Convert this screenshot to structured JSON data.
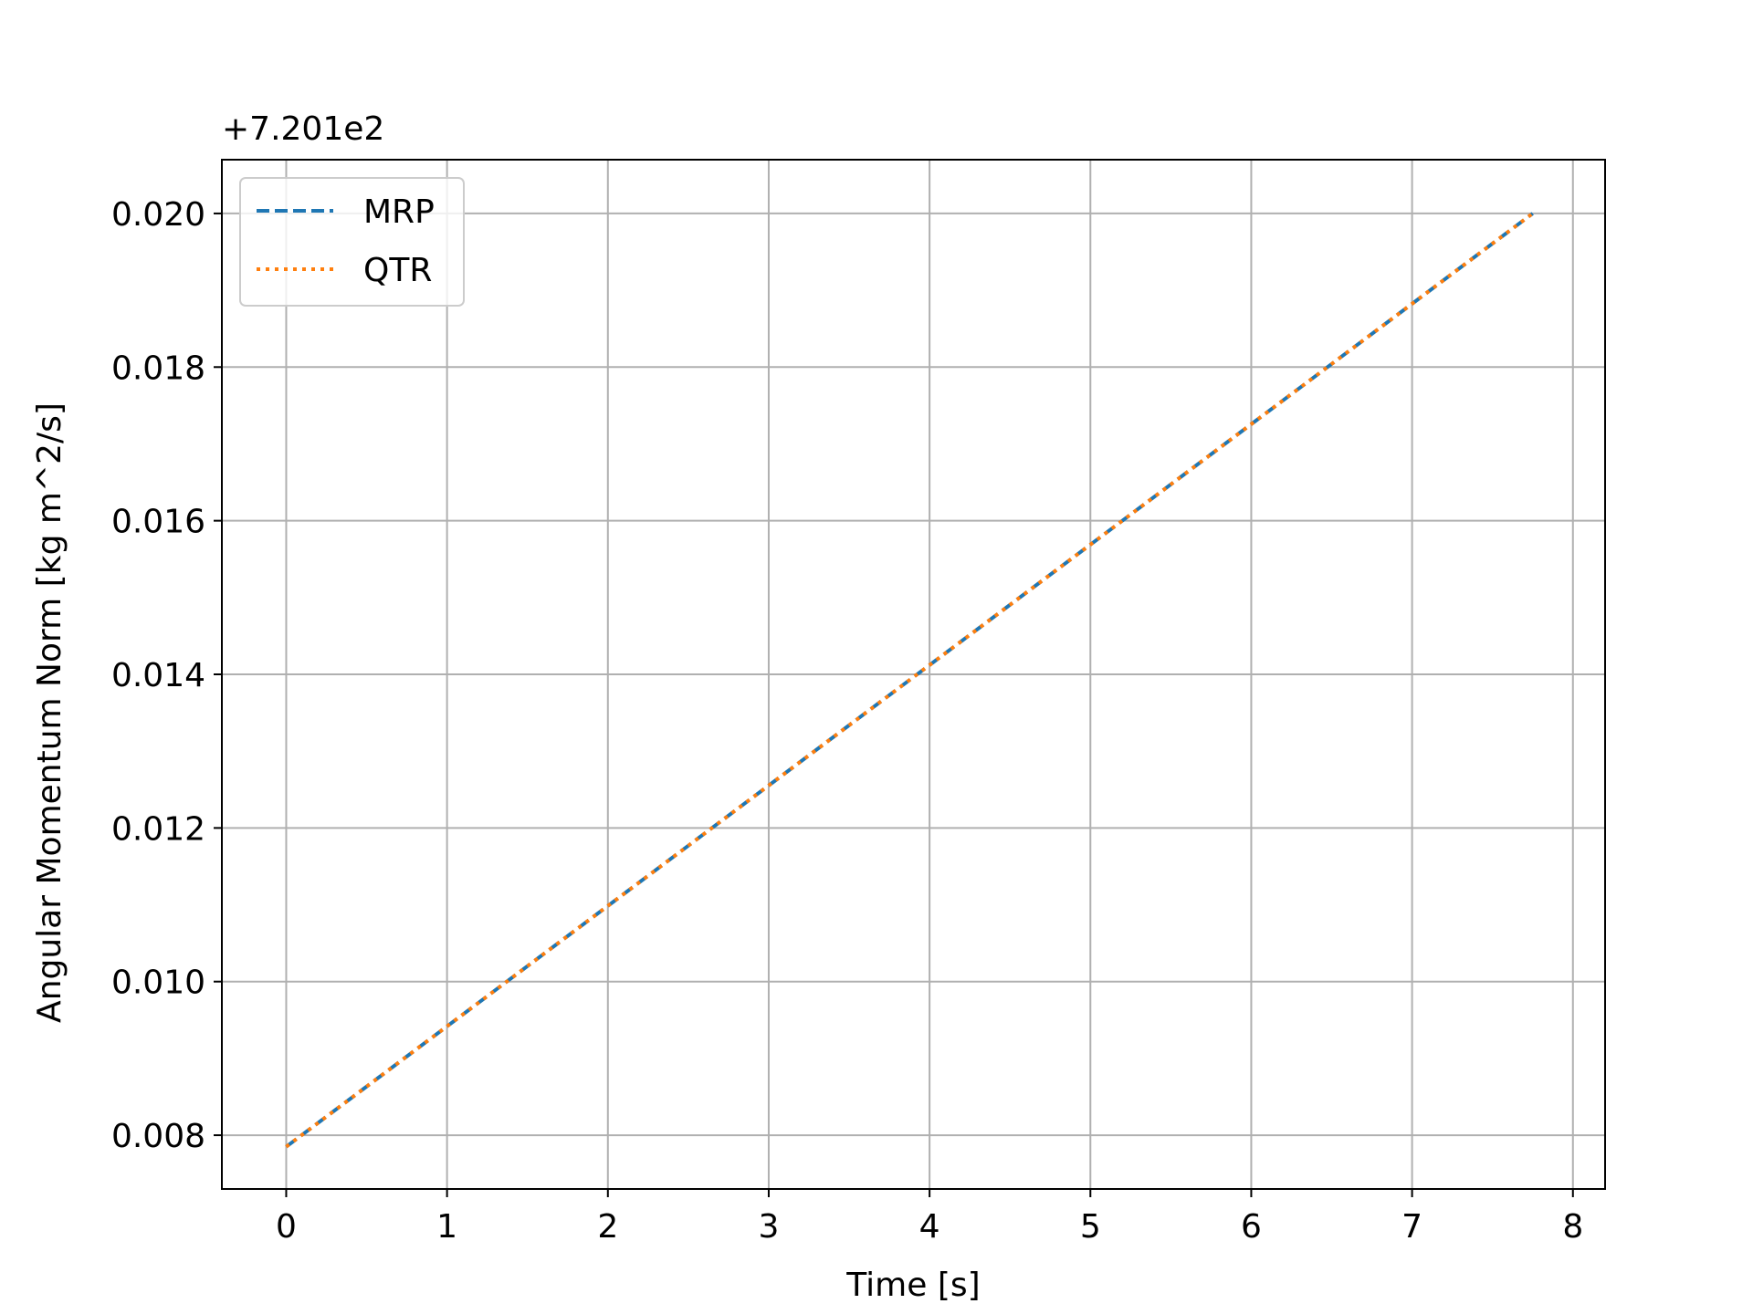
{
  "chart_data": {
    "type": "line",
    "title": "",
    "xlabel": "Time [s]",
    "ylabel": "Angular Momentum Norm [kg m^2/s]",
    "y_offset_label": "+7.201e2",
    "x_ticks": [
      "0",
      "1",
      "2",
      "3",
      "4",
      "5",
      "6",
      "7",
      "8"
    ],
    "y_ticks": [
      "0.008",
      "0.010",
      "0.012",
      "0.014",
      "0.016",
      "0.018",
      "0.020"
    ],
    "xlim": [
      -0.4,
      8.2
    ],
    "ylim": [
      0.0073,
      0.0207
    ],
    "grid": true,
    "legend_position": "top-left",
    "series": [
      {
        "name": "MRP",
        "style": "dashed",
        "color": "#1f77b4",
        "x": [
          0,
          7.75
        ],
        "y": [
          0.00785,
          0.02
        ]
      },
      {
        "name": "QTR",
        "style": "dotted",
        "color": "#ff7f0e",
        "x": [
          0,
          7.75
        ],
        "y": [
          0.00785,
          0.02
        ]
      }
    ]
  }
}
